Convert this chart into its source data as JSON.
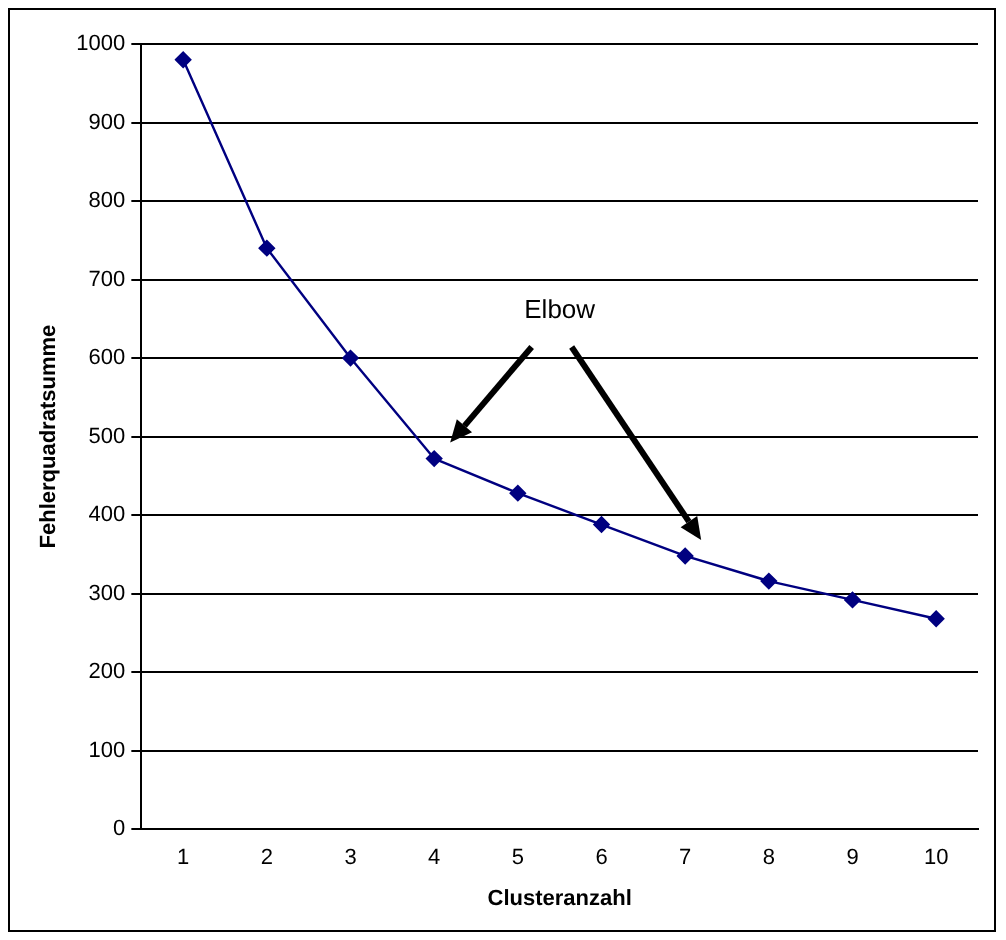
{
  "chart_data": {
    "type": "line",
    "xlabel": "Clusteranzahl",
    "ylabel": "Fehlerquadratsumme",
    "categories": [
      "1",
      "2",
      "3",
      "4",
      "5",
      "6",
      "7",
      "8",
      "9",
      "10"
    ],
    "series": [
      {
        "color": "#000080",
        "values": [
          980,
          740,
          600,
          472,
          428,
          388,
          348,
          316,
          292,
          268
        ]
      }
    ],
    "ylim": [
      0,
      1000
    ],
    "yticks": [
      0,
      100,
      200,
      300,
      400,
      500,
      600,
      700,
      800,
      900,
      1000
    ],
    "grid": "y",
    "legend": false,
    "marker": "diamond",
    "line_style": "solid",
    "annotations": [
      "Elbow"
    ]
  }
}
